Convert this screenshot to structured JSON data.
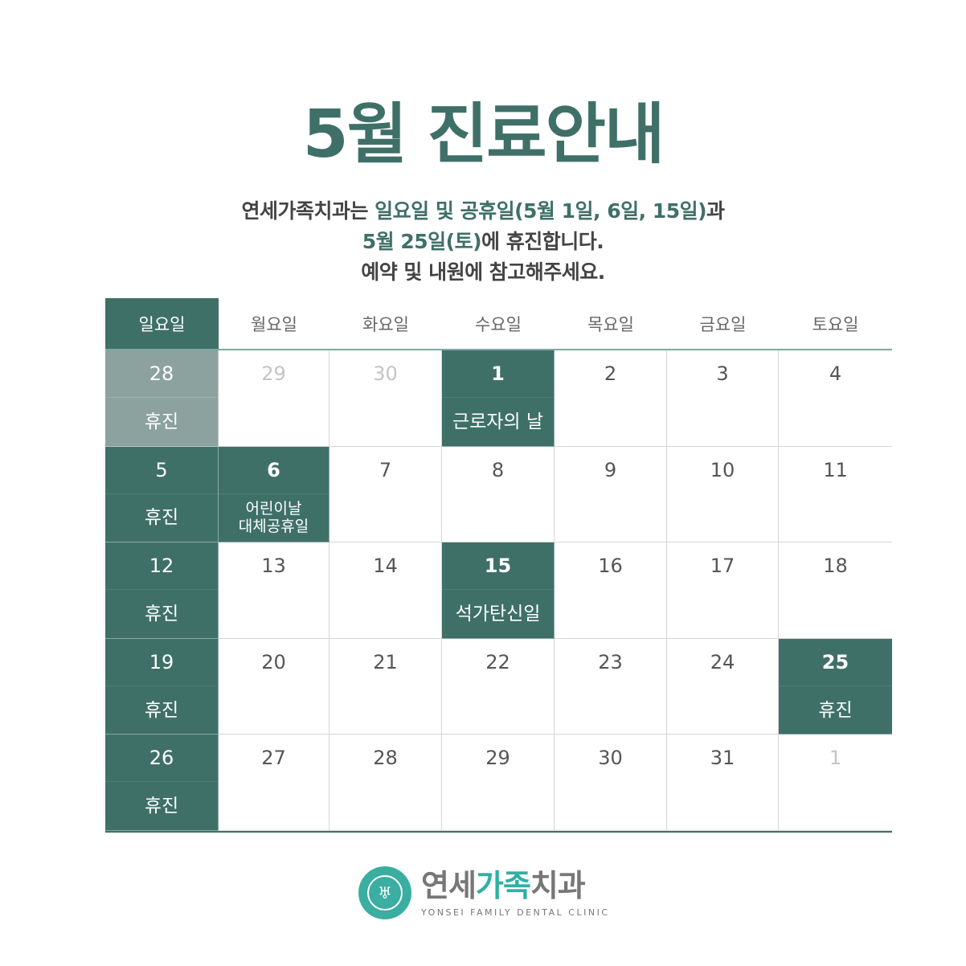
{
  "title": "5월 진료안내",
  "notice": {
    "line1_pre": "연세가족치과는 ",
    "line1_hl": "일요일 및 공휴일(5월 1일, 6일, 15일)",
    "line1_post": "과",
    "line2_hl": "5월 25일(토)",
    "line2_post": "에 휴진합니다.",
    "line3": "예약 및 내원에 참고해주세요."
  },
  "colors": {
    "accent": "#3f7068",
    "past": "#8ba29e",
    "brand": "#2fb0a4"
  },
  "weekdays": [
    "일요일",
    "월요일",
    "화요일",
    "수요일",
    "목요일",
    "금요일",
    "토요일"
  ],
  "days": [
    {
      "n": "28",
      "label": "휴진",
      "style": "past"
    },
    {
      "n": "29",
      "label": "",
      "style": "muted"
    },
    {
      "n": "30",
      "label": "",
      "style": "muted"
    },
    {
      "n": "1",
      "label": "근로자의 날",
      "style": "hol bold"
    },
    {
      "n": "2",
      "label": "",
      "style": ""
    },
    {
      "n": "3",
      "label": "",
      "style": ""
    },
    {
      "n": "4",
      "label": "",
      "style": ""
    },
    {
      "n": "5",
      "label": "휴진",
      "style": "hol"
    },
    {
      "n": "6",
      "label": "어린이날\n대체공휴일",
      "style": "hol bold small"
    },
    {
      "n": "7",
      "label": "",
      "style": ""
    },
    {
      "n": "8",
      "label": "",
      "style": ""
    },
    {
      "n": "9",
      "label": "",
      "style": ""
    },
    {
      "n": "10",
      "label": "",
      "style": ""
    },
    {
      "n": "11",
      "label": "",
      "style": ""
    },
    {
      "n": "12",
      "label": "휴진",
      "style": "hol"
    },
    {
      "n": "13",
      "label": "",
      "style": ""
    },
    {
      "n": "14",
      "label": "",
      "style": ""
    },
    {
      "n": "15",
      "label": "석가탄신일",
      "style": "hol bold"
    },
    {
      "n": "16",
      "label": "",
      "style": ""
    },
    {
      "n": "17",
      "label": "",
      "style": ""
    },
    {
      "n": "18",
      "label": "",
      "style": ""
    },
    {
      "n": "19",
      "label": "휴진",
      "style": "hol"
    },
    {
      "n": "20",
      "label": "",
      "style": ""
    },
    {
      "n": "21",
      "label": "",
      "style": ""
    },
    {
      "n": "22",
      "label": "",
      "style": ""
    },
    {
      "n": "23",
      "label": "",
      "style": ""
    },
    {
      "n": "24",
      "label": "",
      "style": ""
    },
    {
      "n": "25",
      "label": "휴진",
      "style": "hol bold"
    },
    {
      "n": "26",
      "label": "휴진",
      "style": "hol"
    },
    {
      "n": "27",
      "label": "",
      "style": ""
    },
    {
      "n": "28",
      "label": "",
      "style": ""
    },
    {
      "n": "29",
      "label": "",
      "style": ""
    },
    {
      "n": "30",
      "label": "",
      "style": ""
    },
    {
      "n": "31",
      "label": "",
      "style": ""
    },
    {
      "n": "1",
      "label": "",
      "style": "muted"
    }
  ],
  "logo": {
    "ko_a": "연세",
    "ko_b": "가족",
    "ko_c": "치과",
    "en": "YONSEI FAMILY DENTAL CLINIC",
    "seal_text": "YONSEI UNIVERSITY"
  }
}
